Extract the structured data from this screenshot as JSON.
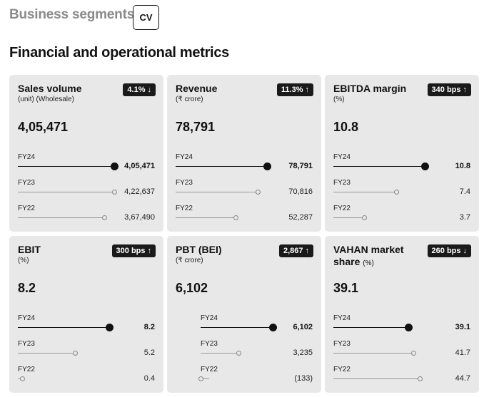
{
  "header": {
    "segments_title": "Business segments",
    "segment_badge": "CV",
    "metrics_title": "Financial and operational metrics"
  },
  "cards": [
    {
      "title": "Sales volume",
      "title_unit": "",
      "subtitle": "(unit) (Wholesale)",
      "badge": "4.1%",
      "badge_arrow": "↓",
      "value": "4,05,471",
      "rows": [
        {
          "label": "FY24",
          "value": "4,05,471",
          "fraction": 1.0
        },
        {
          "label": "FY23",
          "value": "4,22,637",
          "fraction": 1.0
        },
        {
          "label": "FY22",
          "value": "3,67,490",
          "fraction": 0.9
        }
      ]
    },
    {
      "title": "Revenue",
      "title_unit": "",
      "subtitle": "(₹ crore)",
      "badge": "11.3%",
      "badge_arrow": "↑",
      "value": "78,791",
      "rows": [
        {
          "label": "FY24",
          "value": "78,791",
          "fraction": 1.0
        },
        {
          "label": "FY23",
          "value": "70,816",
          "fraction": 0.9
        },
        {
          "label": "FY22",
          "value": "52,287",
          "fraction": 0.66
        }
      ]
    },
    {
      "title": "EBITDA margin",
      "title_unit": "",
      "subtitle": "(%)",
      "badge": "340 bps",
      "badge_arrow": "↑",
      "value": "10.8",
      "rows": [
        {
          "label": "FY24",
          "value": "10.8",
          "fraction": 1.0
        },
        {
          "label": "FY23",
          "value": "7.4",
          "fraction": 0.69
        },
        {
          "label": "FY22",
          "value": "3.7",
          "fraction": 0.34
        }
      ]
    },
    {
      "title": "EBIT",
      "title_unit": "",
      "subtitle": "(%)",
      "badge": "300 bps",
      "badge_arrow": "↑",
      "value": "8.2",
      "rows": [
        {
          "label": "FY24",
          "value": "8.2",
          "fraction": 1.0
        },
        {
          "label": "FY23",
          "value": "5.2",
          "fraction": 0.63
        },
        {
          "label": "FY22",
          "value": "0.4",
          "fraction": 0.05
        }
      ]
    },
    {
      "title": "PBT (BEI)",
      "title_unit": "",
      "subtitle": "(₹ crore)",
      "badge": "2,867",
      "badge_arrow": "↑",
      "value": "6,102",
      "rows": [
        {
          "label": "FY24",
          "value": "6,102",
          "fraction": 1.0
        },
        {
          "label": "FY23",
          "value": "3,235",
          "fraction": 0.53
        },
        {
          "label": "FY22",
          "value": "(133)",
          "fraction": -0.022
        }
      ]
    },
    {
      "title": "VAHAN market share",
      "title_unit": "(%)",
      "subtitle": "",
      "badge": "260 bps",
      "badge_arrow": "↓",
      "value": "39.1",
      "rows": [
        {
          "label": "FY24",
          "value": "39.1",
          "fraction": 0.87
        },
        {
          "label": "FY23",
          "value": "41.7",
          "fraction": 0.93
        },
        {
          "label": "FY22",
          "value": "44.7",
          "fraction": 1.0
        }
      ]
    }
  ],
  "colors": {
    "card_bg": "#e8e8e9",
    "badge_bg": "#1a1a1a",
    "title_grey": "#8a8a8a"
  }
}
